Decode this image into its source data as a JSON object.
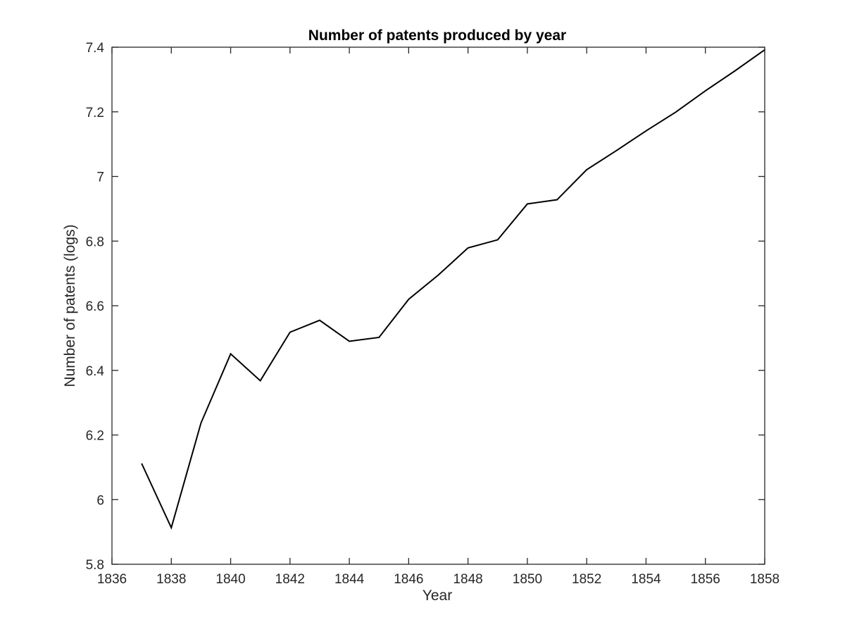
{
  "chart_data": {
    "type": "line",
    "title": "Number of patents produced by year",
    "xlabel": "Year",
    "ylabel": "Number of patents (logs)",
    "xlim": [
      1836,
      1858
    ],
    "ylim": [
      5.8,
      7.4
    ],
    "xticks": [
      1836,
      1838,
      1840,
      1842,
      1844,
      1846,
      1848,
      1850,
      1852,
      1854,
      1856,
      1858
    ],
    "yticks": [
      5.8,
      6,
      6.2,
      6.4,
      6.6,
      6.8,
      7,
      7.2,
      7.4
    ],
    "ytick_labels": [
      "5.8",
      "6",
      "6.2",
      "6.4",
      "6.6",
      "6.8",
      "7",
      "7.2",
      "7.4"
    ],
    "grid": false,
    "legend": false,
    "line_color": "#000000",
    "series": [
      {
        "x": [
          1837,
          1838,
          1839,
          1840,
          1841,
          1842,
          1843,
          1844,
          1845,
          1846,
          1847,
          1848,
          1849,
          1850,
          1851,
          1852,
          1853,
          1854,
          1855,
          1856,
          1857,
          1858
        ],
        "values": [
          6.112,
          5.913,
          6.237,
          6.451,
          6.368,
          6.518,
          6.555,
          6.49,
          6.502,
          6.62,
          6.695,
          6.779,
          6.804,
          6.915,
          6.928,
          7.021,
          7.08,
          7.141,
          7.199,
          7.265,
          7.327,
          7.392
        ]
      }
    ]
  }
}
